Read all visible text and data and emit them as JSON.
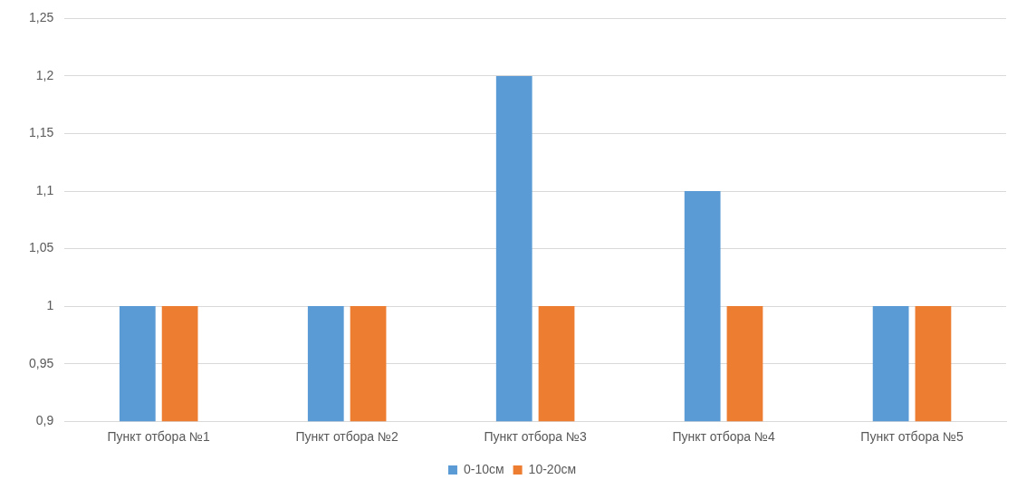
{
  "chart_data": {
    "type": "bar",
    "categories": [
      "Пункт отбора №1",
      "Пункт отбора №2",
      "Пункт отбора №3",
      "Пункт отбора №4",
      "Пункт отбора №5"
    ],
    "series": [
      {
        "name": "0-10см",
        "color": "#5b9bd5",
        "values": [
          1,
          1,
          1.2,
          1.1,
          1
        ]
      },
      {
        "name": "10-20см",
        "color": "#ed7d31",
        "values": [
          1,
          1,
          1,
          1,
          1
        ]
      }
    ],
    "ylim": [
      0.9,
      1.25
    ],
    "yticks": [
      {
        "value": 0.9,
        "label": "0,9"
      },
      {
        "value": 0.95,
        "label": "0,95"
      },
      {
        "value": 1,
        "label": "1"
      },
      {
        "value": 1.05,
        "label": "1,05"
      },
      {
        "value": 1.1,
        "label": "1,1"
      },
      {
        "value": 1.15,
        "label": "1,15"
      },
      {
        "value": 1.2,
        "label": "1,2"
      },
      {
        "value": 1.25,
        "label": "1,25"
      }
    ],
    "grid": "y",
    "legend": "bottom"
  }
}
